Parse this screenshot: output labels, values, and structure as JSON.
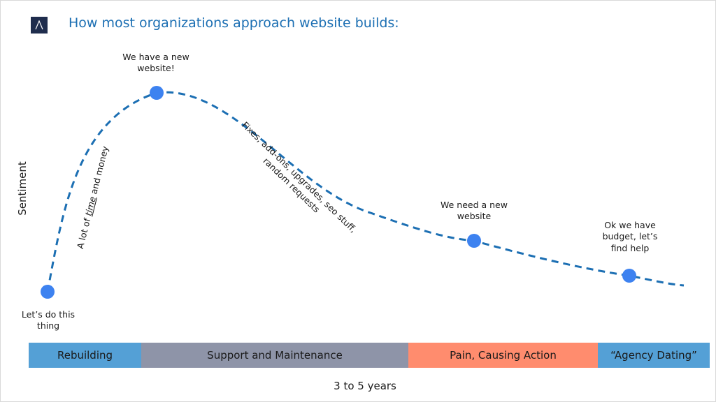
{
  "title": "How most organizations approach website builds:",
  "logo_letter": "A",
  "y_axis_label": "Sentiment",
  "x_axis_label": "3 to 5 years",
  "accent_color": "#1c6fb3",
  "curve_color": "#1c6fb3",
  "point_color": "#3d82f0",
  "milestones": [
    {
      "label": "Let’s do this thing"
    },
    {
      "label": "We have a new website!"
    },
    {
      "label": "We need a new website"
    },
    {
      "label": "Ok we have budget, let’s find help"
    }
  ],
  "rise_annotation": {
    "before": "A lot of ",
    "emphasis": "time",
    "after": " and money"
  },
  "decline_annotation": {
    "line1": "Fixes, add-ons, upgrades, seo stuff,",
    "line2": "random requests"
  },
  "phases": [
    {
      "label": "Rebuilding",
      "color": "#54a0d6"
    },
    {
      "label": "Support and Maintenance",
      "color": "#8e94a8"
    },
    {
      "label": "Pain, Causing Action",
      "color": "#ff8c6e"
    },
    {
      "label": "“Agency Dating”",
      "color": "#54a0d6"
    }
  ]
}
